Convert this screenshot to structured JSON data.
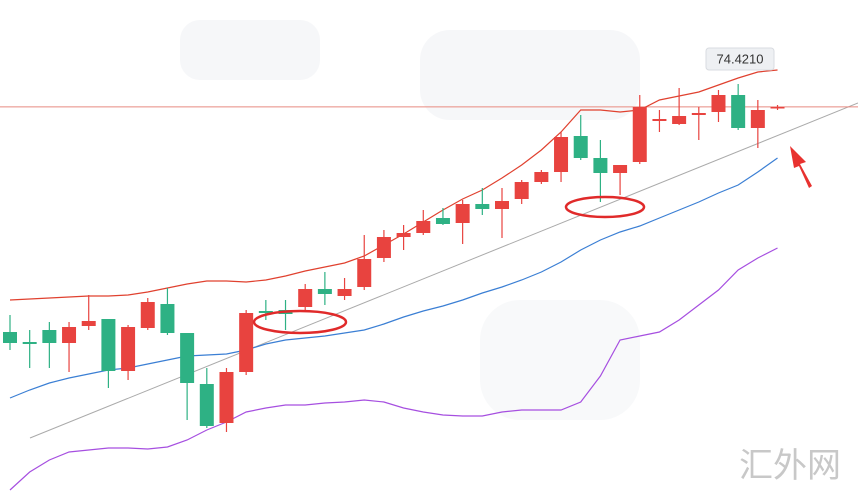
{
  "chart_data": {
    "type": "candlestick",
    "ylim": [
      70.54,
      75.49
    ],
    "up_color": "#e8433f",
    "down_color": "#2eb184",
    "open": [
      72.17,
      72.07,
      72.19,
      72.06,
      72.23,
      72.3,
      71.78,
      72.21,
      72.45,
      72.16,
      71.65,
      71.26,
      71.77,
      72.38,
      72.39,
      72.42,
      72.6,
      72.53,
      72.62,
      72.91,
      73.12,
      73.16,
      73.31,
      73.26,
      73.45,
      73.4,
      73.5,
      73.67,
      73.77,
      74.13,
      73.91,
      73.76,
      73.87,
      74.28,
      74.25,
      74.34,
      74.37,
      74.54,
      74.21,
      74.41
    ],
    "high": [
      72.34,
      72.19,
      72.27,
      72.27,
      72.54,
      72.3,
      72.24,
      72.51,
      72.61,
      72.16,
      71.81,
      71.81,
      72.39,
      72.49,
      72.49,
      72.65,
      72.77,
      72.71,
      73.14,
      73.19,
      73.24,
      73.39,
      73.41,
      73.49,
      73.61,
      73.61,
      73.69,
      73.79,
      74.17,
      74.34,
      74.09,
      73.84,
      74.54,
      74.39,
      74.61,
      74.42,
      74.59,
      74.65,
      74.49,
      74.44
    ],
    "low": [
      71.99,
      71.81,
      71.81,
      71.77,
      72.19,
      71.61,
      71.69,
      72.19,
      72.14,
      71.29,
      71.21,
      71.17,
      71.74,
      72.29,
      72.19,
      72.39,
      72.44,
      72.49,
      72.59,
      72.87,
      72.99,
      73.14,
      73.24,
      73.05,
      73.34,
      73.11,
      73.45,
      73.65,
      73.67,
      73.89,
      73.47,
      73.54,
      73.85,
      74.17,
      74.24,
      74.09,
      74.27,
      74.19,
      74.01,
      74.39
    ],
    "close": [
      72.06,
      72.05,
      72.06,
      72.22,
      72.28,
      71.78,
      72.22,
      72.47,
      72.16,
      71.66,
      71.23,
      71.77,
      72.36,
      72.36,
      72.35,
      72.6,
      72.55,
      72.6,
      72.9,
      73.12,
      73.16,
      73.28,
      73.25,
      73.45,
      73.4,
      73.48,
      73.67,
      73.77,
      74.12,
      73.91,
      73.76,
      73.84,
      74.42,
      74.3,
      74.33,
      74.36,
      74.54,
      74.21,
      74.39,
      74.42
    ],
    "series": [
      {
        "color": "#e0412f",
        "values": [
          72.49,
          72.5,
          72.51,
          72.52,
          72.53,
          72.53,
          72.54,
          72.57,
          72.61,
          72.65,
          72.68,
          72.68,
          72.67,
          72.69,
          72.73,
          72.78,
          72.82,
          72.86,
          72.93,
          73.04,
          73.15,
          73.27,
          73.39,
          73.5,
          73.59,
          73.71,
          73.84,
          73.99,
          74.17,
          74.39,
          74.39,
          74.37,
          74.39,
          74.49,
          74.53,
          74.57,
          74.64,
          74.71,
          74.77,
          74.79
        ]
      },
      {
        "color": "#3b7fd4",
        "values": [
          71.51,
          71.59,
          71.66,
          71.71,
          71.75,
          71.79,
          71.81,
          71.85,
          71.89,
          71.93,
          71.94,
          71.95,
          71.99,
          72.05,
          72.09,
          72.11,
          72.13,
          72.16,
          72.19,
          72.25,
          72.32,
          72.38,
          72.43,
          72.49,
          72.56,
          72.62,
          72.69,
          72.77,
          72.87,
          72.99,
          73.09,
          73.17,
          73.23,
          73.31,
          73.39,
          73.47,
          73.56,
          73.64,
          73.77,
          73.91
        ]
      },
      {
        "color": "#a64fe0",
        "values": [
          70.59,
          70.77,
          70.89,
          70.97,
          70.99,
          71.01,
          71.01,
          71.0,
          71.02,
          71.09,
          71.19,
          71.27,
          71.37,
          71.41,
          71.44,
          71.44,
          71.46,
          71.47,
          71.49,
          71.47,
          71.41,
          71.37,
          71.34,
          71.33,
          71.33,
          71.37,
          71.39,
          71.39,
          71.39,
          71.47,
          71.73,
          72.09,
          72.13,
          72.17,
          72.29,
          72.44,
          72.59,
          72.79,
          72.91,
          73.01
        ]
      }
    ],
    "last_price": {
      "value": 74.421,
      "label": "74.4210"
    },
    "last_price_color": "#e88a80",
    "watermark": "汇外网"
  }
}
